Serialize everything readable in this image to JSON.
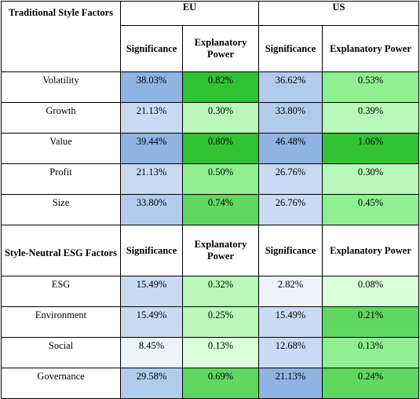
{
  "colors": {
    "sig_high": "#8fb3e2",
    "sig_mid": "#b2cbed",
    "sig_low": "#c9dbf2",
    "sig_lowest": "#edf2fb",
    "exp_high": "#30c232",
    "exp_mid": "#5fd85f",
    "exp_low": "#8ef08e",
    "exp_lower": "#b8f8b8",
    "exp_lowest": "#daffda"
  },
  "headers": {
    "eu": "EU",
    "us": "US",
    "traditional": "Traditional Style Factors",
    "esg": "Style-Neutral ESG Factors",
    "significance": "Significance",
    "explanatory": "Explanatory Power"
  },
  "traditional_rows": [
    {
      "factor": "Volatility",
      "eu_sig": "38.03%",
      "eu_exp": "0.82%",
      "us_sig": "36.62%",
      "us_exp": "0.53%",
      "eu_sig_color": "#8fb3e2",
      "eu_exp_color": "#30c232",
      "us_sig_color": "#b2cbed",
      "us_exp_color": "#8ef08e"
    },
    {
      "factor": "Growth",
      "eu_sig": "21.13%",
      "eu_exp": "0.30%",
      "us_sig": "33.80%",
      "us_exp": "0.39%",
      "eu_sig_color": "#c9dbf2",
      "eu_exp_color": "#b8f8b8",
      "us_sig_color": "#b2cbed",
      "us_exp_color": "#b8f8b8"
    },
    {
      "factor": "Value",
      "eu_sig": "39.44%",
      "eu_exp": "0.80%",
      "us_sig": "46.48%",
      "us_exp": "1.06%",
      "eu_sig_color": "#8fb3e2",
      "eu_exp_color": "#30c232",
      "us_sig_color": "#8fb3e2",
      "us_exp_color": "#30c232"
    },
    {
      "factor": "Profit",
      "eu_sig": "21.13%",
      "eu_exp": "0.50%",
      "us_sig": "26.76%",
      "us_exp": "0.30%",
      "eu_sig_color": "#c9dbf2",
      "eu_exp_color": "#8ef08e",
      "us_sig_color": "#c9dbf2",
      "us_exp_color": "#b8f8b8"
    },
    {
      "factor": "Size",
      "eu_sig": "33.80%",
      "eu_exp": "0.74%",
      "us_sig": "26.76%",
      "us_exp": "0.45%",
      "eu_sig_color": "#b2cbed",
      "eu_exp_color": "#5fd85f",
      "us_sig_color": "#c9dbf2",
      "us_exp_color": "#8ef08e"
    }
  ],
  "esg_rows": [
    {
      "factor": "ESG",
      "eu_sig": "15.49%",
      "eu_exp": "0.32%",
      "us_sig": "2.82%",
      "us_exp": "0.08%",
      "eu_sig_color": "#c9dbf2",
      "eu_exp_color": "#b8f8b8",
      "us_sig_color": "#edf2fb",
      "us_exp_color": "#daffda"
    },
    {
      "factor": "Environment",
      "eu_sig": "15.49%",
      "eu_exp": "0.25%",
      "us_sig": "15.49%",
      "us_exp": "0.21%",
      "eu_sig_color": "#c9dbf2",
      "eu_exp_color": "#b8f8b8",
      "us_sig_color": "#c9dbf2",
      "us_exp_color": "#5fd85f"
    },
    {
      "factor": "Social",
      "eu_sig": "8.45%",
      "eu_exp": "0.13%",
      "us_sig": "12.68%",
      "us_exp": "0.13%",
      "eu_sig_color": "#edf2fb",
      "eu_exp_color": "#daffda",
      "us_sig_color": "#c9dbf2",
      "us_exp_color": "#8ef08e"
    },
    {
      "factor": "Governance",
      "eu_sig": "29.58%",
      "eu_exp": "0.69%",
      "us_sig": "21.13%",
      "us_exp": "0.24%",
      "eu_sig_color": "#b2cbed",
      "eu_exp_color": "#5fd85f",
      "us_sig_color": "#8fb3e2",
      "us_exp_color": "#5fd85f"
    }
  ]
}
